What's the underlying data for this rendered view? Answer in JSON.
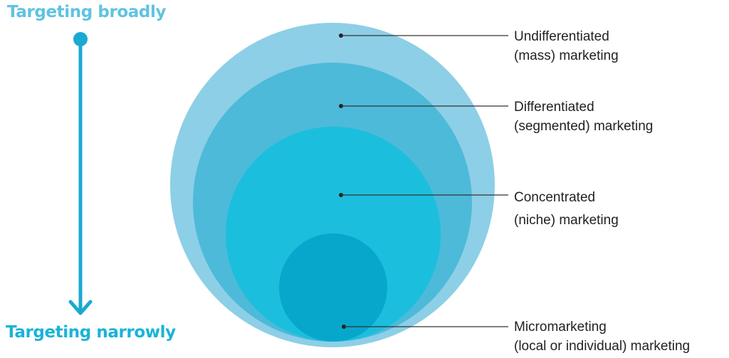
{
  "axis": {
    "top_label": "Targeting broadly",
    "bottom_label": "Targeting narrowly"
  },
  "levels": [
    {
      "line1": "Undifferentiated",
      "line2": "(mass) marketing",
      "color": "#8dcfe6"
    },
    {
      "line1": "Differentiated",
      "line2": "(segmented) marketing",
      "color": "#4dbad9"
    },
    {
      "line1": "Concentrated",
      "line2": "(niche) marketing",
      "color": "#1bbfdd"
    },
    {
      "line1": "Micromarketing",
      "line2": "(local or individual) marketing",
      "color": "#07a7cc"
    }
  ],
  "colors": {
    "arrow": "#1aa9d1",
    "leader_line": "#333333"
  }
}
